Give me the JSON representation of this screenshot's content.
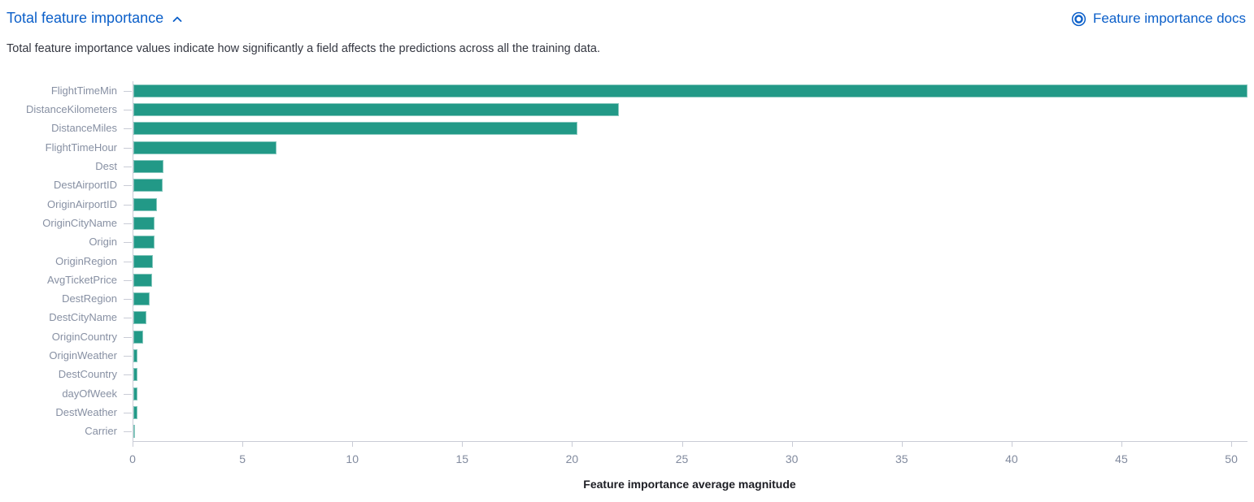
{
  "header": {
    "title": "Total feature importance",
    "collapse_icon": "chevron-up-icon",
    "docs_link": {
      "icon": "lifebuoy-icon",
      "label": "Feature importance docs"
    }
  },
  "description": "Total feature importance values indicate how significantly a field affects the predictions across all the training data.",
  "colors": {
    "bar": "#229987",
    "link": "#0b5fc9",
    "axis_line": "#c9ccd6",
    "y_label": "#8790a3",
    "x_tick_label": "#818a9e",
    "description_text": "#343741",
    "axis_title": "#1d1e24"
  },
  "chart_data": {
    "type": "bar",
    "orientation": "horizontal",
    "title": "",
    "categories": [
      "FlightTimeMin",
      "DistanceKilometers",
      "DistanceMiles",
      "FlightTimeHour",
      "Dest",
      "DestAirportID",
      "OriginAirportID",
      "OriginCityName",
      "Origin",
      "OriginRegion",
      "AvgTicketPrice",
      "DestRegion",
      "DestCityName",
      "OriginCountry",
      "OriginWeather",
      "DestCountry",
      "dayOfWeek",
      "DestWeather",
      "Carrier"
    ],
    "values": [
      50.7,
      22.1,
      20.2,
      6.5,
      1.36,
      1.33,
      1.08,
      0.98,
      0.95,
      0.9,
      0.85,
      0.74,
      0.61,
      0.43,
      0.2,
      0.2,
      0.2,
      0.18,
      0.06
    ],
    "xlabel": "Feature importance average magnitude",
    "ylabel": "",
    "xlim": [
      0,
      50.7
    ],
    "xticks": [
      0,
      5,
      10,
      15,
      20,
      25,
      30,
      35,
      40,
      45,
      50
    ],
    "grid": false,
    "legend": false
  }
}
